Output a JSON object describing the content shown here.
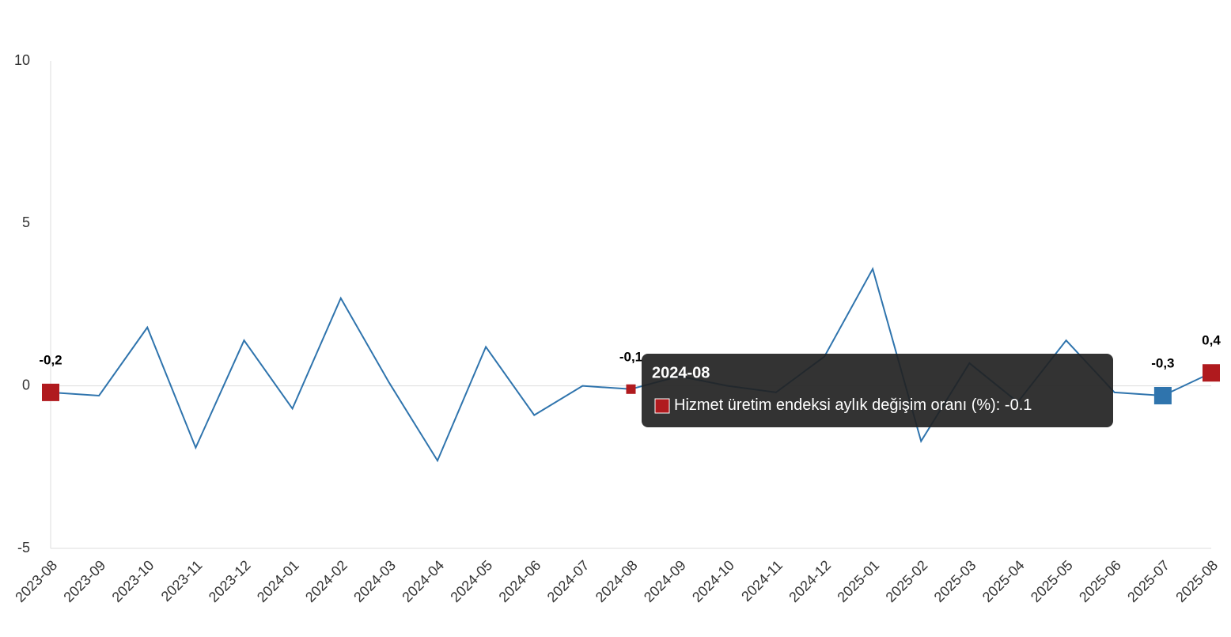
{
  "chart_data": {
    "type": "line",
    "categories": [
      "2023-08",
      "2023-09",
      "2023-10",
      "2023-11",
      "2023-12",
      "2024-01",
      "2024-02",
      "2024-03",
      "2024-04",
      "2024-05",
      "2024-06",
      "2024-07",
      "2024-08",
      "2024-09",
      "2024-10",
      "2024-11",
      "2024-12",
      "2025-01",
      "2025-02",
      "2025-03",
      "2025-04",
      "2025-05",
      "2025-06",
      "2025-07",
      "2025-08"
    ],
    "series": [
      {
        "name": "Hizmet üretim endeksi aylık değişim oranı (%)",
        "color": "#2f74ad",
        "values": [
          -0.2,
          -0.3,
          1.8,
          -1.9,
          1.4,
          -0.7,
          2.7,
          0.1,
          -2.3,
          1.2,
          -0.9,
          0.0,
          -0.1,
          0.3,
          0.0,
          -0.2,
          0.9,
          3.6,
          -1.7,
          0.7,
          -0.5,
          1.4,
          -0.2,
          -0.3,
          0.4
        ],
        "value_labels": [
          "-0,2",
          null,
          null,
          null,
          null,
          null,
          null,
          null,
          null,
          null,
          null,
          null,
          "-0,1",
          null,
          null,
          null,
          null,
          null,
          null,
          null,
          null,
          null,
          null,
          "-0,3",
          "0,4"
        ]
      }
    ],
    "highlight_color": "#b01a1e",
    "ylim": [
      -5,
      10
    ],
    "yticks": [
      -5,
      0,
      5,
      10
    ]
  }
}
